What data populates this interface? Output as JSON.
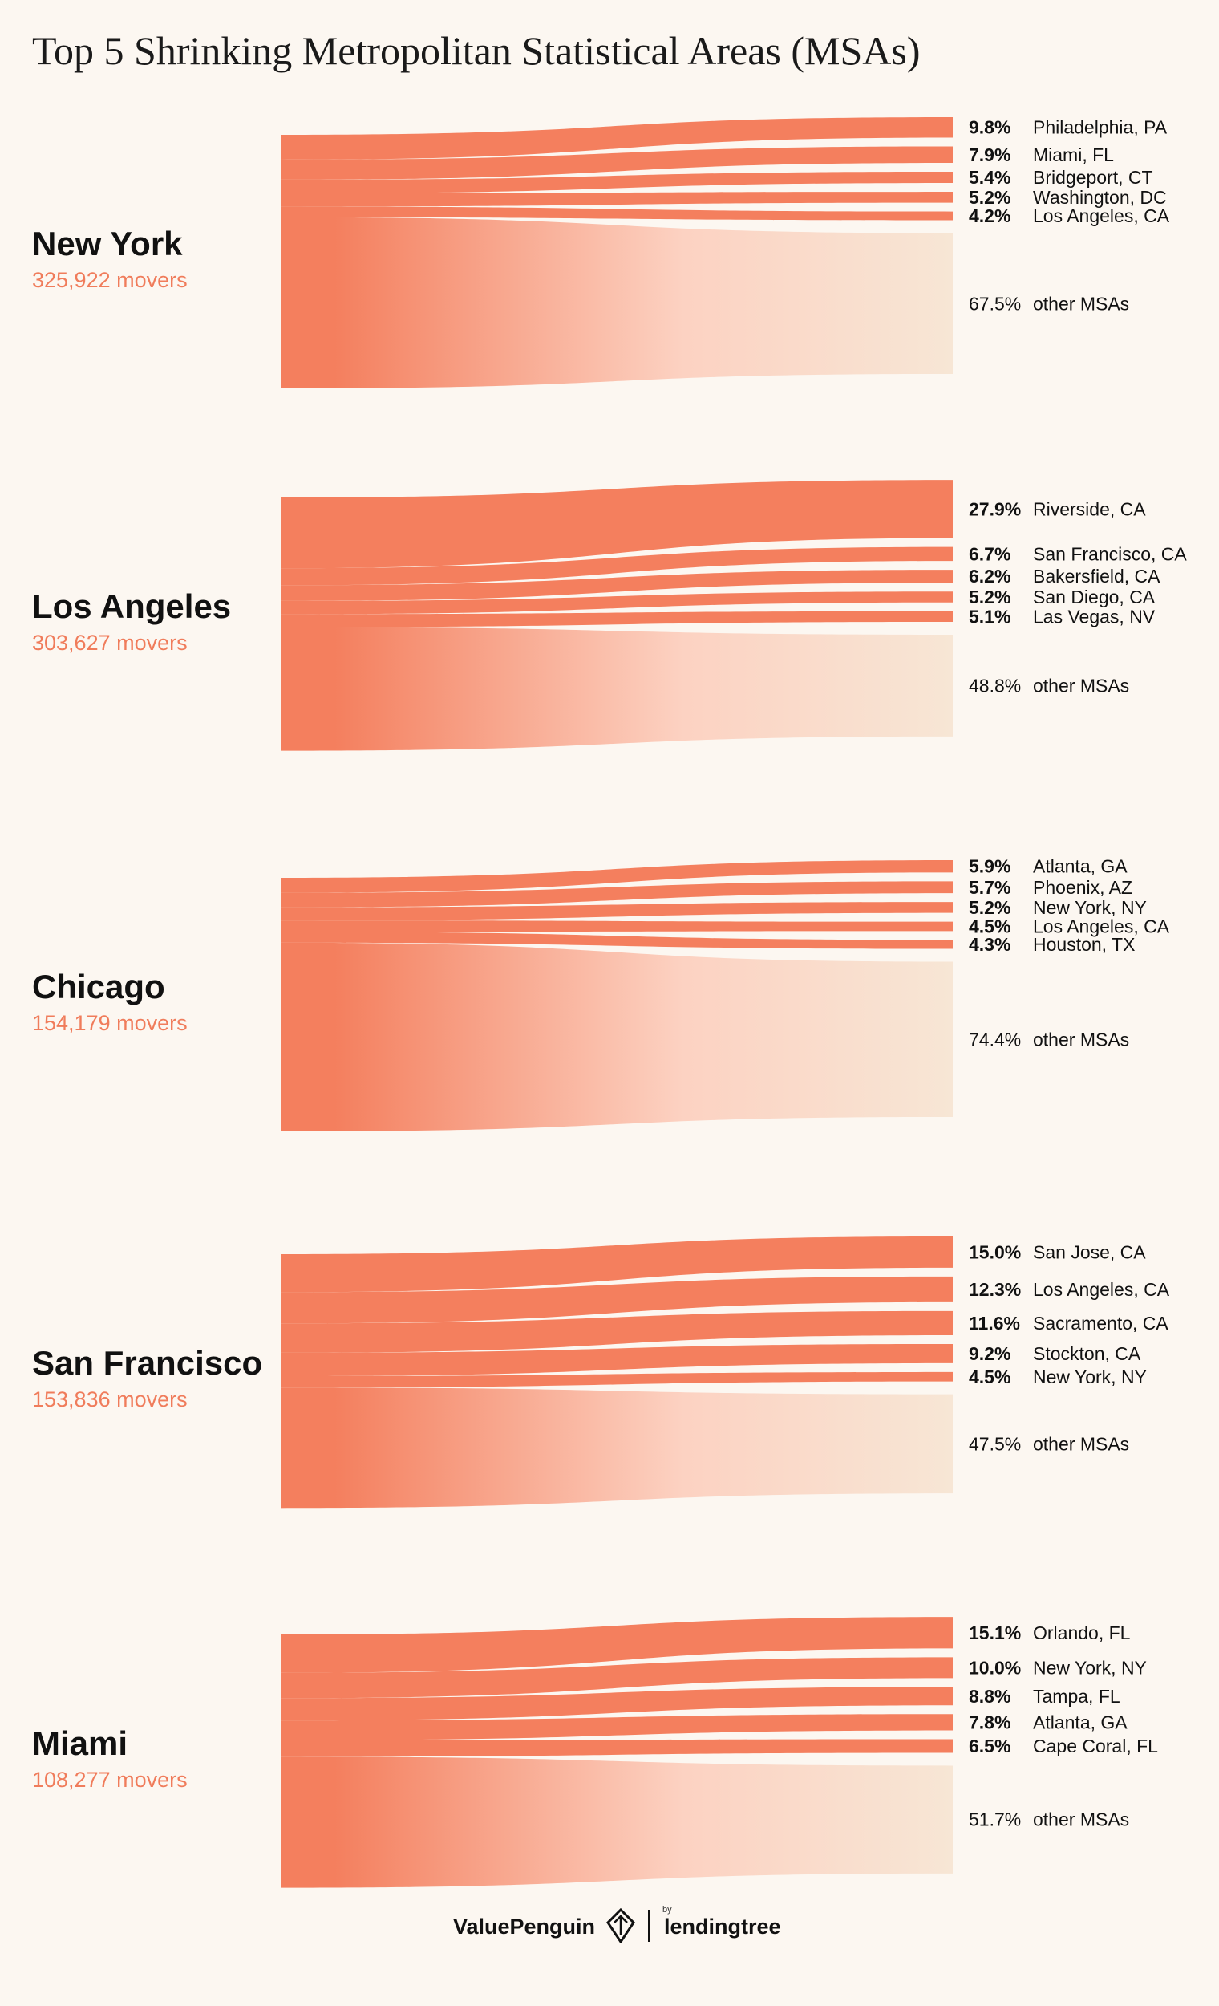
{
  "title": "Top 5 Shrinking Metropolitan Statistical Areas (MSAs)",
  "colors": {
    "flow": "#f47f5e",
    "fade": "#f7e6d5",
    "background": "#fcf7f1",
    "subtitle": "#f07c5b"
  },
  "chart_data": {
    "type": "sankey",
    "title": "Top 5 Shrinking Metropolitan Statistical Areas (MSAs)",
    "sources": [
      {
        "name": "New York",
        "movers": "325,922 movers",
        "destinations": [
          {
            "pct": 9.8,
            "label": "9.8%",
            "name": "Philadelphia, PA"
          },
          {
            "pct": 7.9,
            "label": "7.9%",
            "name": "Miami, FL"
          },
          {
            "pct": 5.4,
            "label": "5.4%",
            "name": "Bridgeport, CT"
          },
          {
            "pct": 5.2,
            "label": "5.2%",
            "name": "Washington, DC"
          },
          {
            "pct": 4.2,
            "label": "4.2%",
            "name": "Los Angeles, CA"
          },
          {
            "pct": 67.5,
            "label": "67.5%",
            "name": "other MSAs",
            "other": true
          }
        ]
      },
      {
        "name": "Los Angeles",
        "movers": "303,627 movers",
        "destinations": [
          {
            "pct": 27.9,
            "label": "27.9%",
            "name": "Riverside, CA"
          },
          {
            "pct": 6.7,
            "label": "6.7%",
            "name": "San Francisco, CA"
          },
          {
            "pct": 6.2,
            "label": "6.2%",
            "name": "Bakersfield, CA"
          },
          {
            "pct": 5.2,
            "label": "5.2%",
            "name": "San Diego, CA"
          },
          {
            "pct": 5.1,
            "label": "5.1%",
            "name": "Las Vegas, NV"
          },
          {
            "pct": 48.8,
            "label": "48.8%",
            "name": "other MSAs",
            "other": true
          }
        ]
      },
      {
        "name": "Chicago",
        "movers": "154,179 movers",
        "destinations": [
          {
            "pct": 5.9,
            "label": "5.9%",
            "name": "Atlanta, GA"
          },
          {
            "pct": 5.7,
            "label": "5.7%",
            "name": "Phoenix, AZ"
          },
          {
            "pct": 5.2,
            "label": "5.2%",
            "name": "New York, NY"
          },
          {
            "pct": 4.5,
            "label": "4.5%",
            "name": "Los Angeles, CA"
          },
          {
            "pct": 4.3,
            "label": "4.3%",
            "name": "Houston, TX"
          },
          {
            "pct": 74.4,
            "label": "74.4%",
            "name": "other MSAs",
            "other": true
          }
        ]
      },
      {
        "name": "San Francisco",
        "movers": "153,836 movers",
        "destinations": [
          {
            "pct": 15.0,
            "label": "15.0%",
            "name": "San Jose, CA"
          },
          {
            "pct": 12.3,
            "label": "12.3%",
            "name": "Los Angeles, CA"
          },
          {
            "pct": 11.6,
            "label": "11.6%",
            "name": "Sacramento, CA"
          },
          {
            "pct": 9.2,
            "label": "9.2%",
            "name": "Stockton, CA"
          },
          {
            "pct": 4.5,
            "label": "4.5%",
            "name": "New York, NY"
          },
          {
            "pct": 47.5,
            "label": "47.5%",
            "name": "other MSAs",
            "other": true
          }
        ]
      },
      {
        "name": "Miami",
        "movers": "108,277 movers",
        "destinations": [
          {
            "pct": 15.1,
            "label": "15.1%",
            "name": "Orlando, FL"
          },
          {
            "pct": 10.0,
            "label": "10.0%",
            "name": "New York, NY"
          },
          {
            "pct": 8.8,
            "label": "8.8%",
            "name": "Tampa, FL"
          },
          {
            "pct": 7.8,
            "label": "7.8%",
            "name": "Atlanta, GA"
          },
          {
            "pct": 6.5,
            "label": "6.5%",
            "name": "Cape Coral, FL"
          },
          {
            "pct": 51.7,
            "label": "51.7%",
            "name": "other MSAs",
            "other": true
          }
        ]
      }
    ]
  },
  "footer": {
    "brand_left": "ValuePenguin",
    "by": "by",
    "brand_right": "lendingtree",
    "logo_icon": "penguin-logo-icon"
  }
}
